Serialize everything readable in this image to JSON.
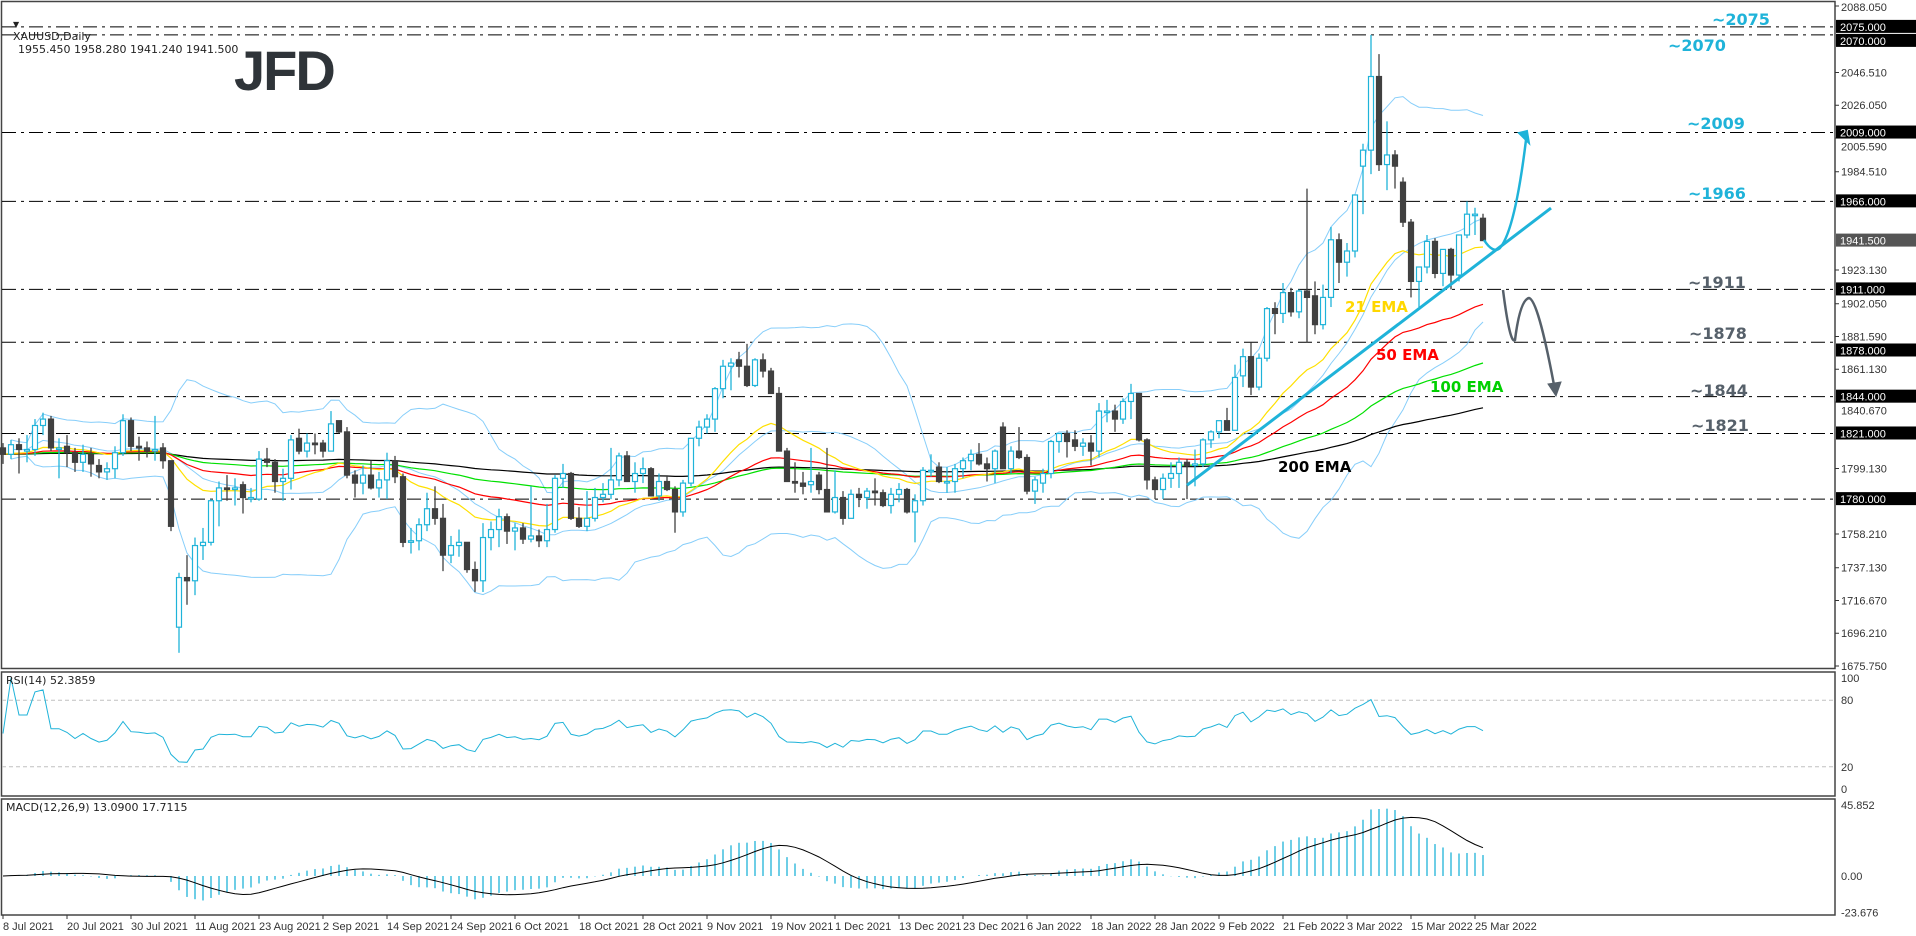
{
  "header": {
    "symbol_label": "XAUUSD,Daily",
    "ohlc_text": "1955.450 1958.280 1941.240 1941.500"
  },
  "logo": "JFD",
  "colors": {
    "bull": "#1fb3d9",
    "bear": "#404040",
    "ema21": "#ffe000",
    "ema50": "#ff0000",
    "ema100": "#00e000",
    "ema200": "#000000",
    "bollinger": "#87cefa",
    "level_up": "#1fb3d9",
    "level_down": "#56606a",
    "rsi": "#1fb3d9",
    "macd_hist": "#1fb3d9",
    "macd_signal": "#000000"
  },
  "chart_data": [
    {
      "type": "candlestick",
      "symbol": "XAUUSD",
      "timeframe": "Daily",
      "ylim": [
        1675.75,
        2088.05
      ],
      "y_ticks": [
        "2088.050",
        "2046.510",
        "2026.050",
        "2005.590",
        "1984.510",
        "1923.130",
        "1902.050",
        "1881.590",
        "1861.130",
        "1840.670",
        "1799.130",
        "1758.210",
        "1737.130",
        "1716.670",
        "1696.210",
        "1675.750"
      ],
      "x_ticks": [
        "8 Jul 2021",
        "20 Jul 2021",
        "30 Jul 2021",
        "11 Aug 2021",
        "23 Aug 2021",
        "2 Sep 2021",
        "14 Sep 2021",
        "24 Sep 2021",
        "6 Oct 2021",
        "18 Oct 2021",
        "28 Oct 2021",
        "9 Nov 2021",
        "19 Nov 2021",
        "1 Dec 2021",
        "13 Dec 2021",
        "23 Dec 2021",
        "6 Jan 2022",
        "18 Jan 2022",
        "28 Jan 2022",
        "9 Feb 2022",
        "21 Feb 2022",
        "3 Mar 2022",
        "15 Mar 2022",
        "25 Mar 2022"
      ],
      "x_tick_every_bars": 8,
      "current_price": "1941.500",
      "levels": [
        {
          "value": 2075,
          "axis_label": "2075.000",
          "label": "~2075",
          "tone": "up"
        },
        {
          "value": 2070,
          "axis_label": "2070.000",
          "label": "~2070",
          "tone": "up"
        },
        {
          "value": 2009,
          "axis_label": "2009.000",
          "label": "~2009",
          "tone": "up"
        },
        {
          "value": 1966,
          "axis_label": "1966.000",
          "label": "~1966",
          "tone": "up"
        },
        {
          "value": 1911,
          "axis_label": "1911.000",
          "label": "~1911",
          "tone": "down"
        },
        {
          "value": 1878,
          "axis_label": "1878.000",
          "label": "~1878",
          "tone": "down"
        },
        {
          "value": 1844,
          "axis_label": "1844.000",
          "label": "~1844",
          "tone": "down"
        },
        {
          "value": 1821,
          "axis_label": "1821.000",
          "label": "~1821",
          "tone": "down"
        },
        {
          "value": 1780,
          "axis_label": "1780.000",
          "label": "",
          "tone": "down"
        }
      ],
      "indicators": [
        {
          "type": "ema",
          "period": 21,
          "label": "21 EMA"
        },
        {
          "type": "ema",
          "period": 50,
          "label": "50 EMA"
        },
        {
          "type": "ema",
          "period": 100,
          "label": "100 EMA"
        },
        {
          "type": "ema",
          "period": 200,
          "label": "200 EMA"
        },
        {
          "type": "bollinger",
          "period": 20,
          "deviation": 2
        }
      ],
      "ohlc": [
        [
          1812,
          1815,
          1802,
          1808
        ],
        [
          1808,
          1817,
          1805,
          1814
        ],
        [
          1814,
          1818,
          1796,
          1811
        ],
        [
          1810,
          1820,
          1803,
          1811
        ],
        [
          1811,
          1830,
          1807,
          1826
        ],
        [
          1826,
          1834,
          1820,
          1830
        ],
        [
          1830,
          1832,
          1810,
          1812
        ],
        [
          1812,
          1818,
          1793,
          1812
        ],
        [
          1813,
          1820,
          1800,
          1809
        ],
        [
          1809,
          1812,
          1797,
          1803
        ],
        [
          1803,
          1814,
          1797,
          1808
        ],
        [
          1808,
          1812,
          1794,
          1802
        ],
        [
          1801,
          1805,
          1793,
          1797
        ],
        [
          1797,
          1803,
          1792,
          1799
        ],
        [
          1799,
          1813,
          1793,
          1809
        ],
        [
          1809,
          1833,
          1807,
          1829
        ],
        [
          1829,
          1831,
          1810,
          1813
        ],
        [
          1813,
          1819,
          1804,
          1812
        ],
        [
          1812,
          1816,
          1806,
          1810
        ],
        [
          1810,
          1832,
          1804,
          1811
        ],
        [
          1812,
          1815,
          1799,
          1804
        ],
        [
          1804,
          1804,
          1760,
          1763
        ],
        [
          1700,
          1734,
          1684,
          1731
        ],
        [
          1731,
          1745,
          1714,
          1729
        ],
        [
          1729,
          1756,
          1720,
          1751
        ],
        [
          1751,
          1762,
          1742,
          1753
        ],
        [
          1753,
          1780,
          1751,
          1779
        ],
        [
          1779,
          1791,
          1763,
          1787
        ],
        [
          1787,
          1795,
          1779,
          1786
        ],
        [
          1786,
          1793,
          1776,
          1787
        ],
        [
          1789,
          1791,
          1771,
          1781
        ],
        [
          1781,
          1787,
          1778,
          1781
        ],
        [
          1780,
          1810,
          1779,
          1805
        ],
        [
          1805,
          1812,
          1800,
          1803
        ],
        [
          1803,
          1805,
          1784,
          1791
        ],
        [
          1791,
          1799,
          1779,
          1793
        ],
        [
          1793,
          1820,
          1786,
          1817
        ],
        [
          1818,
          1824,
          1808,
          1810
        ],
        [
          1810,
          1821,
          1806,
          1815
        ],
        [
          1815,
          1821,
          1808,
          1814
        ],
        [
          1815,
          1817,
          1806,
          1810
        ],
        [
          1810,
          1835,
          1810,
          1827
        ],
        [
          1829,
          1829,
          1821,
          1822
        ],
        [
          1822,
          1825,
          1793,
          1795
        ],
        [
          1795,
          1798,
          1781,
          1790
        ],
        [
          1790,
          1801,
          1783,
          1795
        ],
        [
          1795,
          1804,
          1786,
          1787
        ],
        [
          1787,
          1797,
          1781,
          1792
        ],
        [
          1792,
          1809,
          1780,
          1804
        ],
        [
          1804,
          1807,
          1790,
          1794
        ],
        [
          1794,
          1796,
          1750,
          1753
        ],
        [
          1753,
          1762,
          1746,
          1754
        ],
        [
          1754,
          1768,
          1748,
          1764
        ],
        [
          1764,
          1784,
          1760,
          1774
        ],
        [
          1774,
          1788,
          1764,
          1768
        ],
        [
          1768,
          1777,
          1735,
          1745
        ],
        [
          1745,
          1757,
          1740,
          1751
        ],
        [
          1751,
          1761,
          1744,
          1753
        ],
        [
          1753,
          1753,
          1734,
          1736
        ],
        [
          1736,
          1741,
          1722,
          1729
        ],
        [
          1729,
          1765,
          1722,
          1756
        ],
        [
          1756,
          1766,
          1748,
          1761
        ],
        [
          1761,
          1774,
          1750,
          1769
        ],
        [
          1769,
          1771,
          1752,
          1760
        ],
        [
          1760,
          1765,
          1748,
          1762
        ],
        [
          1762,
          1765,
          1752,
          1755
        ],
        [
          1755,
          1788,
          1753,
          1757
        ],
        [
          1757,
          1761,
          1750,
          1754
        ],
        [
          1754,
          1777,
          1750,
          1761
        ],
        [
          1761,
          1795,
          1759,
          1793
        ],
        [
          1793,
          1802,
          1787,
          1796
        ],
        [
          1796,
          1797,
          1767,
          1768
        ],
        [
          1768,
          1775,
          1762,
          1763
        ],
        [
          1763,
          1785,
          1760,
          1768
        ],
        [
          1768,
          1787,
          1766,
          1781
        ],
        [
          1781,
          1790,
          1778,
          1783
        ],
        [
          1783,
          1812,
          1780,
          1792
        ],
        [
          1792,
          1809,
          1788,
          1807
        ],
        [
          1807,
          1810,
          1791,
          1791
        ],
        [
          1791,
          1803,
          1784,
          1796
        ],
        [
          1796,
          1806,
          1790,
          1799
        ],
        [
          1799,
          1800,
          1782,
          1782
        ],
        [
          1782,
          1796,
          1779,
          1791
        ],
        [
          1791,
          1794,
          1785,
          1786
        ],
        [
          1786,
          1788,
          1759,
          1772
        ],
        [
          1772,
          1792,
          1769,
          1790
        ],
        [
          1790,
          1818,
          1788,
          1818
        ],
        [
          1818,
          1829,
          1813,
          1825
        ],
        [
          1825,
          1833,
          1821,
          1830
        ],
        [
          1830,
          1850,
          1822,
          1849
        ],
        [
          1849,
          1867,
          1843,
          1863
        ],
        [
          1863,
          1868,
          1848,
          1865
        ],
        [
          1867,
          1872,
          1856,
          1863
        ],
        [
          1863,
          1877,
          1850,
          1851
        ],
        [
          1851,
          1868,
          1850,
          1867
        ],
        [
          1867,
          1871,
          1856,
          1860
        ],
        [
          1860,
          1862,
          1846,
          1846
        ],
        [
          1846,
          1850,
          1810,
          1810
        ],
        [
          1810,
          1812,
          1791,
          1791
        ],
        [
          1791,
          1803,
          1784,
          1790
        ],
        [
          1790,
          1797,
          1783,
          1788
        ],
        [
          1789,
          1812,
          1784,
          1791
        ],
        [
          1795,
          1797,
          1783,
          1786
        ],
        [
          1786,
          1812,
          1772,
          1772
        ],
        [
          1772,
          1798,
          1771,
          1781
        ],
        [
          1781,
          1785,
          1764,
          1768
        ],
        [
          1768,
          1786,
          1768,
          1783
        ],
        [
          1783,
          1787,
          1775,
          1781
        ],
        [
          1781,
          1787,
          1774,
          1785
        ],
        [
          1785,
          1793,
          1776,
          1784
        ],
        [
          1784,
          1786,
          1775,
          1776
        ],
        [
          1776,
          1787,
          1771,
          1783
        ],
        [
          1783,
          1790,
          1778,
          1786
        ],
        [
          1786,
          1787,
          1771,
          1772
        ],
        [
          1772,
          1783,
          1753,
          1779
        ],
        [
          1779,
          1800,
          1776,
          1798
        ],
        [
          1798,
          1808,
          1794,
          1798
        ],
        [
          1800,
          1803,
          1790,
          1791
        ],
        [
          1791,
          1800,
          1784,
          1791
        ],
        [
          1791,
          1802,
          1784,
          1799
        ],
        [
          1799,
          1806,
          1793,
          1804
        ],
        [
          1804,
          1811,
          1798,
          1808
        ],
        [
          1808,
          1815,
          1801,
          1802
        ],
        [
          1802,
          1806,
          1791,
          1799
        ],
        [
          1799,
          1811,
          1790,
          1810
        ],
        [
          1825,
          1828,
          1799,
          1799
        ],
        [
          1799,
          1813,
          1796,
          1810
        ],
        [
          1810,
          1825,
          1805,
          1806
        ],
        [
          1806,
          1808,
          1783,
          1785
        ],
        [
          1785,
          1794,
          1777,
          1792
        ],
        [
          1790,
          1799,
          1784,
          1796
        ],
        [
          1796,
          1817,
          1793,
          1816
        ],
        [
          1816,
          1821,
          1809,
          1821
        ],
        [
          1821,
          1823,
          1806,
          1816
        ],
        [
          1817,
          1823,
          1810,
          1813
        ],
        [
          1813,
          1818,
          1807,
          1815
        ],
        [
          1815,
          1820,
          1801,
          1810
        ],
        [
          1810,
          1840,
          1806,
          1835
        ],
        [
          1835,
          1842,
          1828,
          1835
        ],
        [
          1835,
          1839,
          1822,
          1830
        ],
        [
          1830,
          1843,
          1827,
          1841
        ],
        [
          1841,
          1852,
          1830,
          1846
        ],
        [
          1846,
          1846,
          1816,
          1817
        ],
        [
          1817,
          1818,
          1786,
          1792
        ],
        [
          1792,
          1794,
          1780,
          1786
        ],
        [
          1786,
          1796,
          1780,
          1793
        ],
        [
          1793,
          1803,
          1787,
          1796
        ],
        [
          1796,
          1806,
          1787,
          1803
        ],
        [
          1803,
          1805,
          1780,
          1801
        ],
        [
          1801,
          1811,
          1788,
          1802
        ],
        [
          1802,
          1818,
          1800,
          1817
        ],
        [
          1817,
          1823,
          1812,
          1822
        ],
        [
          1822,
          1829,
          1818,
          1829
        ],
        [
          1829,
          1837,
          1823,
          1823
        ],
        [
          1823,
          1864,
          1823,
          1856
        ],
        [
          1857,
          1874,
          1850,
          1869
        ],
        [
          1869,
          1878,
          1845,
          1850
        ],
        [
          1850,
          1871,
          1848,
          1868
        ],
        [
          1868,
          1900,
          1866,
          1899
        ],
        [
          1899,
          1903,
          1883,
          1896
        ],
        [
          1896,
          1915,
          1890,
          1909
        ],
        [
          1909,
          1912,
          1894,
          1897
        ],
        [
          1897,
          1911,
          1893,
          1910
        ],
        [
          1910,
          1974,
          1878,
          1906
        ],
        [
          1907,
          1916,
          1883,
          1889
        ],
        [
          1889,
          1914,
          1886,
          1906
        ],
        [
          1906,
          1950,
          1900,
          1942
        ],
        [
          1942,
          1946,
          1915,
          1928
        ],
        [
          1928,
          1940,
          1919,
          1935
        ],
        [
          1935,
          1970,
          1931,
          1970
        ],
        [
          1988,
          2002,
          1958,
          1998
        ],
        [
          1998,
          2070,
          1983,
          2044
        ],
        [
          2044,
          2058,
          1985,
          1989
        ],
        [
          1989,
          2016,
          1973,
          1995
        ],
        [
          1995,
          1998,
          1974,
          1988
        ],
        [
          1978,
          1981,
          1950,
          1953
        ],
        [
          1953,
          1955,
          1906,
          1916
        ],
        [
          1916,
          1925,
          1900,
          1925
        ],
        [
          1925,
          1945,
          1921,
          1941
        ],
        [
          1941,
          1943,
          1918,
          1921
        ],
        [
          1921,
          1936,
          1913,
          1936
        ],
        [
          1936,
          1937,
          1911,
          1920
        ],
        [
          1920,
          1945,
          1916,
          1945
        ],
        [
          1945,
          1966,
          1943,
          1958
        ],
        [
          1958,
          1962,
          1945,
          1958
        ],
        [
          1955.45,
          1958.28,
          1941.24,
          1941.5
        ]
      ]
    },
    {
      "type": "line",
      "title": "RSI(14) 52.3859",
      "period": 14,
      "ylim": [
        0,
        100
      ],
      "y_ticks": [
        "100",
        "80",
        "20",
        "0"
      ],
      "levels": [
        80,
        20
      ]
    },
    {
      "type": "bar",
      "title": "MACD(12,26,9) 13.0900 17.7115",
      "fast": 12,
      "slow": 26,
      "signal": 9,
      "ylim": [
        -23.676,
        45.852
      ],
      "y_ticks": [
        "45.852",
        "0.00",
        "-23.676"
      ]
    }
  ]
}
